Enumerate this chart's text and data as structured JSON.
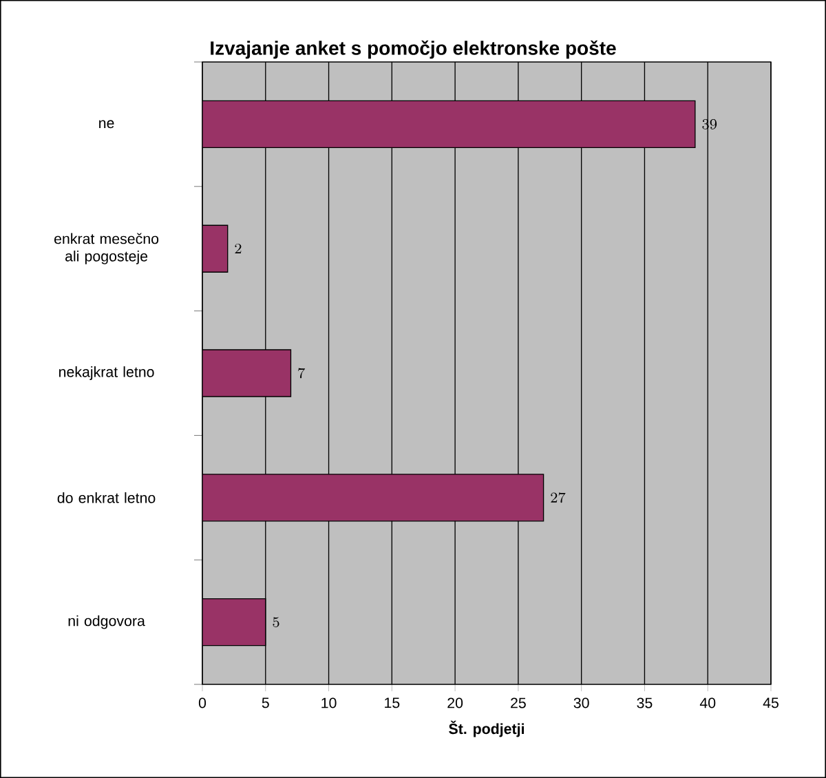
{
  "chart_data": {
    "type": "bar",
    "orientation": "horizontal",
    "title": "Izvajanje anket s pomočjo elektronske pošte",
    "xlabel": "Št. podjetji",
    "categories": [
      "ne",
      "enkrat mesečno ali pogosteje",
      "nekajkrat letno",
      "do enkrat letno",
      "ni odgovora"
    ],
    "values": [
      39,
      2,
      7,
      27,
      5
    ],
    "color": "#993366",
    "xlim": [
      0,
      45
    ],
    "xticks": [
      0,
      5,
      10,
      15,
      20,
      25,
      30,
      35,
      40,
      45
    ],
    "grid": "x",
    "data_labels": true
  }
}
